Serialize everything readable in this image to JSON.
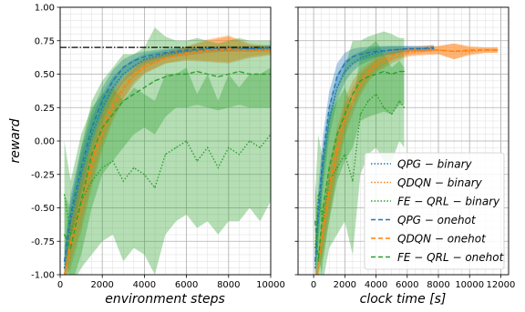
{
  "chart_data": [
    {
      "type": "line",
      "xlabel": "environment steps",
      "ylabel": "reward",
      "xlim": [
        0,
        10000
      ],
      "ylim": [
        -1.0,
        1.0
      ],
      "xticks": [
        "0",
        "2000",
        "4000",
        "6000",
        "8000",
        "10000"
      ],
      "yticks": [
        "-1.00",
        "-0.75",
        "-0.50",
        "-0.25",
        "0.00",
        "0.25",
        "0.50",
        "0.75",
        "1.00"
      ],
      "grid": "major and minor",
      "reference_line": {
        "y": 0.7,
        "style": "dash-dot",
        "color": "#000000"
      },
      "series": [
        {
          "name": "QPG − binary",
          "color": "#1f77b4",
          "style": "dotted",
          "x": [
            200,
            500,
            1000,
            1500,
            2000,
            2500,
            3000,
            3500,
            4000,
            5000,
            6000,
            7000,
            8000,
            9000,
            10000
          ],
          "y": [
            -0.95,
            -0.6,
            -0.25,
            0.05,
            0.25,
            0.4,
            0.5,
            0.56,
            0.61,
            0.65,
            0.67,
            0.68,
            0.69,
            0.69,
            0.69
          ],
          "band": [
            0.1,
            0.15,
            0.15,
            0.12,
            0.1,
            0.08,
            0.06,
            0.05,
            0.04,
            0.03,
            0.03,
            0.02,
            0.02,
            0.02,
            0.02
          ]
        },
        {
          "name": "QDQN − binary",
          "color": "#ff7f0e",
          "style": "dotted",
          "x": [
            200,
            500,
            1000,
            1500,
            2000,
            2500,
            3000,
            3500,
            4000,
            5000,
            6000,
            7000,
            8000,
            9000,
            10000
          ],
          "y": [
            -1.0,
            -0.8,
            -0.5,
            -0.2,
            0.05,
            0.25,
            0.38,
            0.48,
            0.55,
            0.62,
            0.65,
            0.67,
            0.68,
            0.67,
            0.67
          ],
          "band": [
            0.05,
            0.15,
            0.18,
            0.15,
            0.12,
            0.1,
            0.08,
            0.06,
            0.05,
            0.04,
            0.05,
            0.08,
            0.1,
            0.05,
            0.03
          ]
        },
        {
          "name": "FE − QRL − binary",
          "color": "#2ca02c",
          "style": "dotted",
          "x": [
            200,
            500,
            1000,
            1500,
            2000,
            2500,
            3000,
            3500,
            4000,
            4500,
            5000,
            5500,
            6000,
            6500,
            7000,
            7500,
            8000,
            8500,
            9000,
            9500,
            10000
          ],
          "y": [
            -0.4,
            -0.7,
            -0.45,
            -0.3,
            -0.2,
            -0.15,
            -0.3,
            -0.2,
            -0.25,
            -0.35,
            -0.1,
            -0.05,
            0.0,
            -0.15,
            -0.05,
            -0.2,
            -0.05,
            -0.1,
            0.0,
            -0.05,
            0.05
          ],
          "band": [
            0.4,
            0.4,
            0.5,
            0.55,
            0.55,
            0.55,
            0.6,
            0.6,
            0.6,
            0.65,
            0.6,
            0.55,
            0.55,
            0.5,
            0.55,
            0.5,
            0.55,
            0.5,
            0.5,
            0.55,
            0.5
          ]
        },
        {
          "name": "QPG − onehot",
          "color": "#1f77b4",
          "style": "dashed",
          "x": [
            200,
            500,
            1000,
            1500,
            2000,
            2500,
            3000,
            3500,
            4000,
            5000,
            6000,
            7000,
            8000,
            9000,
            10000
          ],
          "y": [
            -0.9,
            -0.55,
            -0.2,
            0.1,
            0.3,
            0.45,
            0.55,
            0.6,
            0.63,
            0.66,
            0.68,
            0.69,
            0.69,
            0.69,
            0.7
          ],
          "band": [
            0.1,
            0.15,
            0.15,
            0.12,
            0.1,
            0.08,
            0.06,
            0.05,
            0.04,
            0.03,
            0.02,
            0.02,
            0.02,
            0.02,
            0.02
          ]
        },
        {
          "name": "QDQN − onehot",
          "color": "#ff7f0e",
          "style": "dashed",
          "x": [
            200,
            500,
            1000,
            1500,
            2000,
            2500,
            3000,
            3500,
            4000,
            5000,
            6000,
            7000,
            8000,
            9000,
            10000
          ],
          "y": [
            -1.0,
            -0.75,
            -0.45,
            -0.15,
            0.1,
            0.28,
            0.4,
            0.5,
            0.56,
            0.62,
            0.66,
            0.68,
            0.69,
            0.68,
            0.68
          ],
          "band": [
            0.05,
            0.15,
            0.18,
            0.15,
            0.12,
            0.1,
            0.08,
            0.06,
            0.05,
            0.04,
            0.05,
            0.08,
            0.1,
            0.05,
            0.03
          ]
        },
        {
          "name": "FE − QRL − onehot",
          "color": "#2ca02c",
          "style": "dashed",
          "x": [
            200,
            500,
            1000,
            1500,
            2000,
            2500,
            3000,
            3500,
            4000,
            4500,
            5000,
            5500,
            6000,
            6500,
            7000,
            7500,
            8000,
            8500,
            9000,
            9500,
            10000
          ],
          "y": [
            -0.7,
            -0.8,
            -0.45,
            -0.1,
            0.1,
            0.2,
            0.3,
            0.35,
            0.4,
            0.45,
            0.48,
            0.5,
            0.5,
            0.52,
            0.5,
            0.48,
            0.5,
            0.52,
            0.5,
            0.5,
            0.5
          ],
          "band": [
            0.3,
            0.3,
            0.4,
            0.4,
            0.35,
            0.35,
            0.35,
            0.3,
            0.3,
            0.4,
            0.3,
            0.25,
            0.25,
            0.25,
            0.25,
            0.25,
            0.25,
            0.25,
            0.25,
            0.25,
            0.25
          ]
        }
      ]
    },
    {
      "type": "line",
      "xlabel": "clock time [s]",
      "ylabel": "",
      "xlim": [
        -1000,
        12500
      ],
      "ylim": [
        -1.0,
        1.0
      ],
      "xticks": [
        "0",
        "2000",
        "4000",
        "6000",
        "8000",
        "10000",
        "12000"
      ],
      "grid": "major and minor",
      "legend": "lower-right",
      "series": [
        {
          "name": "QPG − binary",
          "color": "#1f77b4",
          "style": "dotted",
          "x": [
            100,
            300,
            600,
            1000,
            1500,
            2000,
            2500,
            3000,
            4000,
            5000,
            6000,
            7000,
            7700
          ],
          "y": [
            -0.95,
            -0.6,
            -0.2,
            0.15,
            0.4,
            0.52,
            0.58,
            0.62,
            0.66,
            0.68,
            0.69,
            0.69,
            0.69
          ],
          "band": [
            0.1,
            0.15,
            0.15,
            0.12,
            0.1,
            0.08,
            0.06,
            0.05,
            0.04,
            0.03,
            0.02,
            0.02,
            0.02
          ]
        },
        {
          "name": "QDQN − binary",
          "color": "#ff7f0e",
          "style": "dotted",
          "x": [
            200,
            600,
            1000,
            1500,
            2000,
            2500,
            3000,
            3500,
            4000,
            5000,
            6000,
            7000,
            8000,
            9000,
            10000,
            11000,
            11800
          ],
          "y": [
            -1.0,
            -0.7,
            -0.4,
            -0.1,
            0.15,
            0.3,
            0.42,
            0.5,
            0.56,
            0.62,
            0.66,
            0.67,
            0.68,
            0.67,
            0.67,
            0.68,
            0.68
          ],
          "band": [
            0.05,
            0.15,
            0.18,
            0.15,
            0.12,
            0.1,
            0.08,
            0.06,
            0.05,
            0.04,
            0.03,
            0.03,
            0.03,
            0.06,
            0.03,
            0.02,
            0.02
          ]
        },
        {
          "name": "FE − QRL − binary",
          "color": "#2ca02c",
          "style": "dotted",
          "x": [
            100,
            300,
            600,
            1000,
            1500,
            2000,
            2500,
            3000,
            3500,
            4000,
            4500,
            5000,
            5500,
            5800
          ],
          "y": [
            -0.8,
            -0.4,
            -0.6,
            -0.3,
            -0.2,
            -0.1,
            -0.3,
            0.2,
            0.3,
            0.35,
            0.25,
            0.2,
            0.3,
            0.25
          ],
          "band": [
            0.4,
            0.45,
            0.45,
            0.5,
            0.5,
            0.5,
            0.55,
            0.45,
            0.4,
            0.4,
            0.4,
            0.35,
            0.3,
            0.3
          ]
        },
        {
          "name": "QPG − onehot",
          "color": "#1f77b4",
          "style": "dashed",
          "x": [
            100,
            300,
            600,
            1000,
            1500,
            2000,
            2500,
            3000,
            4000,
            5000,
            6000,
            7000,
            7700
          ],
          "y": [
            -0.9,
            -0.5,
            -0.1,
            0.25,
            0.48,
            0.58,
            0.63,
            0.65,
            0.67,
            0.68,
            0.69,
            0.69,
            0.7
          ],
          "band": [
            0.1,
            0.15,
            0.15,
            0.12,
            0.1,
            0.08,
            0.06,
            0.05,
            0.04,
            0.03,
            0.02,
            0.02,
            0.02
          ]
        },
        {
          "name": "QDQN − onehot",
          "color": "#ff7f0e",
          "style": "dashed",
          "x": [
            200,
            600,
            1000,
            1500,
            2000,
            2500,
            3000,
            3500,
            4000,
            5000,
            6000,
            7000,
            8000,
            9000,
            10000,
            11000,
            11800
          ],
          "y": [
            -1.0,
            -0.65,
            -0.35,
            -0.05,
            0.2,
            0.35,
            0.45,
            0.52,
            0.58,
            0.64,
            0.67,
            0.68,
            0.68,
            0.67,
            0.68,
            0.68,
            0.68
          ],
          "band": [
            0.05,
            0.15,
            0.18,
            0.15,
            0.12,
            0.1,
            0.08,
            0.06,
            0.05,
            0.04,
            0.03,
            0.03,
            0.03,
            0.06,
            0.03,
            0.02,
            0.02
          ]
        },
        {
          "name": "FE − QRL − onehot",
          "color": "#2ca02c",
          "style": "dashed",
          "x": [
            100,
            300,
            600,
            1000,
            1500,
            2000,
            2500,
            3000,
            3500,
            4000,
            4500,
            5000,
            5500,
            5800
          ],
          "y": [
            -0.6,
            -0.9,
            -0.5,
            -0.2,
            0.05,
            0.2,
            0.35,
            0.45,
            0.48,
            0.5,
            0.52,
            0.5,
            0.52,
            0.52
          ],
          "band": [
            0.3,
            0.3,
            0.4,
            0.4,
            0.35,
            0.35,
            0.4,
            0.3,
            0.3,
            0.3,
            0.3,
            0.3,
            0.25,
            0.25
          ]
        }
      ]
    }
  ]
}
